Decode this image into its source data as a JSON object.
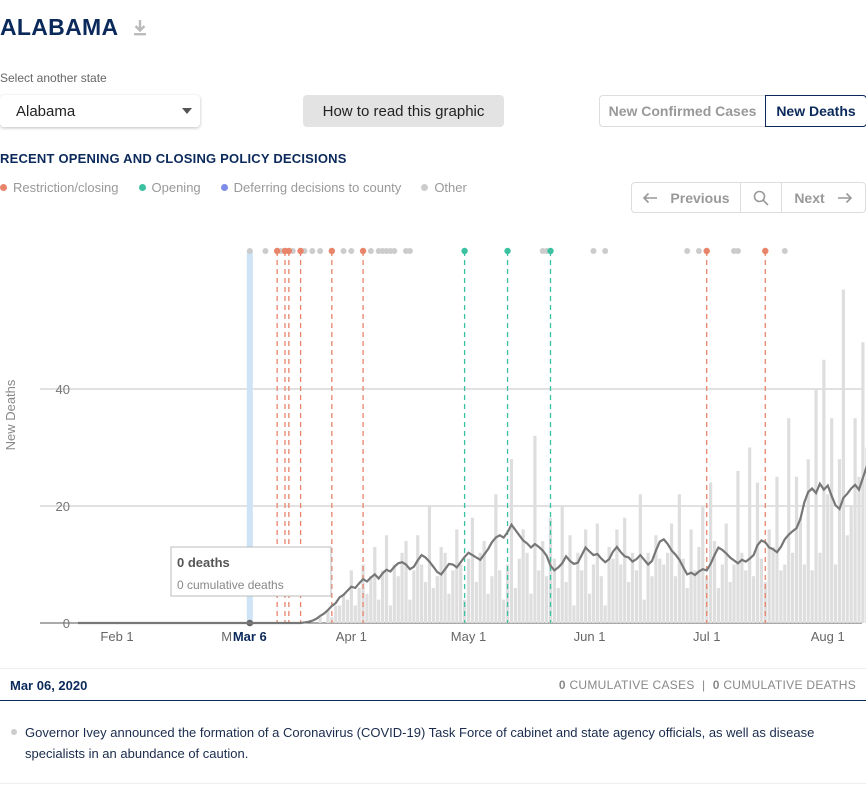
{
  "header": {
    "state_title": "ALABAMA"
  },
  "selector": {
    "label": "Select another state",
    "value": "Alabama"
  },
  "how_button": "How to read this graphic",
  "toggles": {
    "cases": "New Confirmed Cases",
    "deaths": "New Deaths"
  },
  "section_title": "RECENT OPENING AND CLOSING POLICY DECISIONS",
  "legend": [
    {
      "label": "Restriction/closing",
      "color": "#e8846a"
    },
    {
      "label": "Opening",
      "color": "#3cc1a0"
    },
    {
      "label": "Deferring decisions to county",
      "color": "#7f8ce8"
    },
    {
      "label": "Other",
      "color": "#cccccc"
    }
  ],
  "nav": {
    "previous": "Previous",
    "next": "Next"
  },
  "tooltip": {
    "deaths": "0 deaths",
    "cumulative": "0 cumulative deaths"
  },
  "footer": {
    "date": "Mar 06, 2020",
    "cases_count": "0",
    "cases_label": "CUMULATIVE CASES",
    "separator": "|",
    "deaths_count": "0",
    "deaths_label": "CUMULATIVE DEATHS"
  },
  "event_text": "Governor Ivey announced the formation of a Coronavirus (COVID-19) Task Force of cabinet and state agency officials, as well as disease specialists in an abundance of caution.",
  "chart_data": {
    "type": "bar",
    "ylabel": "New Deaths",
    "xlabel": "",
    "x_start": "2020-01-22",
    "ylim": [
      0,
      60
    ],
    "yticks": [
      0,
      20,
      40
    ],
    "xticks": [
      {
        "label": "Feb 1",
        "date": "2020-02-01"
      },
      {
        "label": "Ma",
        "date": "2020-03-01"
      },
      {
        "label": "Apr 1",
        "date": "2020-04-01"
      },
      {
        "label": "May 1",
        "date": "2020-05-01"
      },
      {
        "label": "Jun 1",
        "date": "2020-06-01"
      },
      {
        "label": "Jul 1",
        "date": "2020-07-01"
      },
      {
        "label": "Aug 1",
        "date": "2020-08-01"
      }
    ],
    "selected": {
      "label": "Mar 6",
      "date": "2020-03-06"
    },
    "daily_values": [
      0,
      0,
      0,
      0,
      0,
      0,
      0,
      0,
      0,
      0,
      0,
      0,
      0,
      0,
      0,
      0,
      0,
      0,
      0,
      0,
      0,
      0,
      0,
      0,
      0,
      0,
      0,
      0,
      0,
      0,
      0,
      0,
      0,
      0,
      0,
      0,
      0,
      0,
      0,
      0,
      0,
      0,
      0,
      0,
      0,
      0,
      0,
      0,
      0,
      0,
      0,
      0,
      0,
      0,
      0,
      0,
      0,
      0,
      0,
      0,
      0,
      0,
      1,
      0,
      2,
      1,
      3,
      3,
      5,
      4,
      9,
      3,
      6,
      10,
      5,
      8,
      13,
      4,
      9,
      15,
      3,
      10,
      8,
      12,
      14,
      4,
      9,
      15,
      10,
      7,
      20,
      6,
      8,
      13,
      12,
      5,
      9,
      16,
      10,
      4,
      11,
      18,
      7,
      12,
      14,
      5,
      8,
      22,
      9,
      4,
      10,
      28,
      6,
      11,
      16,
      12,
      5,
      32,
      9,
      14,
      8,
      18,
      11,
      6,
      20,
      7,
      15,
      3,
      12,
      9,
      16,
      5,
      10,
      17,
      8,
      3,
      13,
      11,
      16,
      10,
      18,
      7,
      12,
      9,
      22,
      4,
      12,
      8,
      15,
      11,
      10,
      12,
      17,
      8,
      22,
      11,
      6,
      16,
      9,
      13,
      20,
      8,
      24,
      14,
      6,
      10,
      17,
      7,
      10,
      26,
      12,
      9,
      30,
      8,
      24,
      11,
      7,
      16,
      13,
      25,
      9,
      10,
      35,
      12,
      25,
      18,
      10,
      28,
      9,
      40,
      12,
      45,
      22,
      35,
      10,
      28,
      57,
      15,
      20,
      35,
      25,
      48,
      30,
      20,
      43,
      18,
      38,
      16,
      24,
      17,
      31,
      15
    ],
    "avg_values": [
      0,
      0,
      0,
      0,
      0,
      0,
      0,
      0,
      0,
      0,
      0,
      0,
      0,
      0,
      0,
      0,
      0,
      0,
      0,
      0,
      0,
      0,
      0,
      0,
      0,
      0,
      0,
      0,
      0,
      0,
      0,
      0,
      0,
      0,
      0,
      0,
      0,
      0,
      0,
      0,
      0,
      0,
      0,
      0,
      0,
      0,
      0,
      0,
      0,
      0,
      0,
      0,
      0,
      0,
      0,
      0,
      0,
      0,
      0.1,
      0.2,
      0.4,
      0.7,
      1.2,
      1.6,
      2.2,
      2.9,
      3.4,
      4.4,
      4.8,
      5.5,
      6.2,
      6.0,
      6.8,
      7.5,
      7.1,
      7.8,
      8.3,
      7.6,
      8.5,
      9.1,
      8.8,
      9.6,
      10.2,
      10.4,
      10.0,
      9.2,
      9.6,
      10.7,
      11.6,
      11.2,
      10.5,
      9.6,
      8.7,
      8.3,
      9.2,
      10.1,
      10.0,
      9.5,
      10.4,
      11.3,
      12.0,
      11.6,
      11.2,
      10.8,
      11.7,
      12.6,
      13.8,
      14.6,
      15.0,
      14.6,
      15.5,
      16.8,
      15.9,
      15.0,
      14.1,
      13.6,
      12.9,
      13.5,
      13.0,
      12.4,
      11.5,
      9.8,
      9.0,
      9.5,
      10.2,
      11.4,
      10.6,
      10.1,
      10.3,
      11.6,
      12.9,
      12.2,
      11.6,
      11.8,
      11.0,
      10.4,
      10.9,
      12.2,
      13.0,
      12.1,
      11.4,
      11.2,
      10.5,
      10.9,
      11.6,
      10.8,
      10.0,
      10.6,
      12.4,
      13.9,
      14.3,
      13.5,
      12.4,
      11.7,
      10.8,
      9.5,
      8.3,
      8.6,
      8.2,
      8.8,
      9.2,
      9.0,
      10.1,
      11.6,
      12.9,
      12.5,
      11.9,
      11.2,
      10.7,
      10.2,
      10.8,
      10.5,
      11.0,
      11.6,
      13.3,
      14.1,
      13.8,
      12.9,
      12.6,
      12.1,
      13.0,
      14.3,
      15.1,
      15.7,
      16.2,
      17.8,
      20.6,
      22.4,
      23.0,
      22.2,
      23.8,
      22.8,
      23.5,
      21.7,
      20.1,
      19.5,
      21.4,
      22.1,
      23.0,
      23.6,
      22.8,
      24.8,
      26.8,
      25.5,
      24.1,
      22.7,
      22.0,
      21.5,
      20.8,
      19.6,
      21.8,
      23.5,
      21.2,
      19.9
    ],
    "policy_events": [
      {
        "date": "2020-03-13",
        "type": "restriction"
      },
      {
        "date": "2020-03-15",
        "type": "restriction"
      },
      {
        "date": "2020-03-16",
        "type": "restriction"
      },
      {
        "date": "2020-03-19",
        "type": "restriction"
      },
      {
        "date": "2020-03-27",
        "type": "restriction"
      },
      {
        "date": "2020-04-04",
        "type": "restriction"
      },
      {
        "date": "2020-04-30",
        "type": "opening"
      },
      {
        "date": "2020-05-11",
        "type": "opening"
      },
      {
        "date": "2020-05-22",
        "type": "opening"
      },
      {
        "date": "2020-07-01",
        "type": "restriction"
      },
      {
        "date": "2020-07-16",
        "type": "restriction"
      }
    ],
    "other_events": [
      "2020-03-06",
      "2020-03-10",
      "2020-03-14",
      "2020-03-17",
      "2020-03-20",
      "2020-03-22",
      "2020-03-24",
      "2020-03-30",
      "2020-04-01",
      "2020-04-06",
      "2020-04-08",
      "2020-04-09",
      "2020-04-10",
      "2020-04-11",
      "2020-04-12",
      "2020-04-15",
      "2020-04-16",
      "2020-05-20",
      "2020-05-21",
      "2020-06-02",
      "2020-06-05",
      "2020-06-26",
      "2020-06-29",
      "2020-07-08",
      "2020-07-09",
      "2020-07-21"
    ]
  }
}
